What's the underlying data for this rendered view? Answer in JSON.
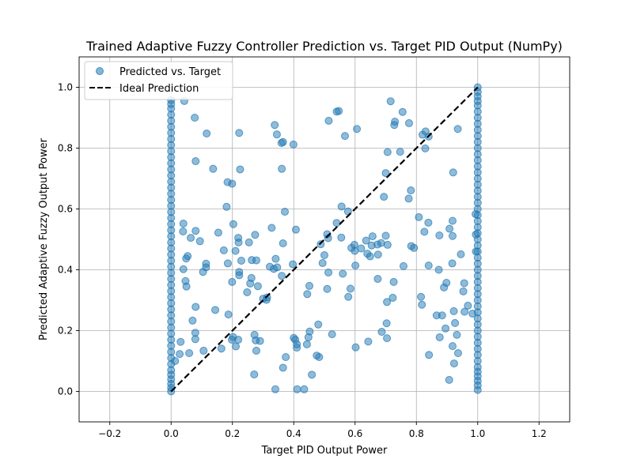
{
  "chart_data": {
    "type": "scatter",
    "title": "Trained Adaptive Fuzzy Controller Prediction vs. Target PID Output (NumPy)",
    "xlabel": "Target PID Output Power",
    "ylabel": "Predicted Adaptive Fuzzy Output Power",
    "xlim": [
      -0.3,
      1.3
    ],
    "ylim": [
      -0.1,
      1.1
    ],
    "xticks": [
      -0.2,
      0.0,
      0.2,
      0.4,
      0.6,
      0.8,
      1.0,
      1.2
    ],
    "xtick_labels": [
      "−0.2",
      "0.0",
      "0.2",
      "0.4",
      "0.6",
      "0.8",
      "1.0",
      "1.2"
    ],
    "yticks": [
      0.0,
      0.2,
      0.4,
      0.6,
      0.8,
      1.0
    ],
    "ytick_labels": [
      "0.0",
      "0.2",
      "0.4",
      "0.6",
      "0.8",
      "1.0"
    ],
    "grid": true,
    "legend_position": "top-left",
    "colors": {
      "scatter": "#1f77b4",
      "ideal": "#000000",
      "grid": "#b0b0b0"
    },
    "series": [
      {
        "name": "Predicted vs. Target",
        "kind": "scatter",
        "points": [
          [
            0.043,
            0.955
          ],
          [
            0.077,
            0.9
          ],
          [
            0.116,
            0.848
          ],
          [
            0.222,
            0.85
          ],
          [
            0.08,
            0.757
          ],
          [
            0.137,
            0.732
          ],
          [
            0.225,
            0.73
          ],
          [
            0.184,
            0.688
          ],
          [
            0.199,
            0.683
          ],
          [
            0.181,
            0.607
          ],
          [
            0.203,
            0.55
          ],
          [
            0.04,
            0.552
          ],
          [
            0.039,
            0.526
          ],
          [
            0.08,
            0.528
          ],
          [
            0.154,
            0.522
          ],
          [
            0.064,
            0.505
          ],
          [
            0.094,
            0.494
          ],
          [
            0.219,
            0.505
          ],
          [
            0.22,
            0.49
          ],
          [
            0.172,
            0.464
          ],
          [
            0.21,
            0.462
          ],
          [
            0.254,
            0.49
          ],
          [
            0.274,
            0.515
          ],
          [
            0.054,
            0.445
          ],
          [
            0.049,
            0.437
          ],
          [
            0.114,
            0.42
          ],
          [
            0.114,
            0.408
          ],
          [
            0.185,
            0.421
          ],
          [
            0.229,
            0.43
          ],
          [
            0.263,
            0.432
          ],
          [
            0.278,
            0.431
          ],
          [
            0.04,
            0.402
          ],
          [
            0.104,
            0.393
          ],
          [
            0.222,
            0.393
          ],
          [
            0.222,
            0.382
          ],
          [
            0.262,
            0.373
          ],
          [
            0.047,
            0.363
          ],
          [
            0.05,
            0.345
          ],
          [
            0.199,
            0.36
          ],
          [
            0.258,
            0.355
          ],
          [
            0.283,
            0.346
          ],
          [
            0.248,
            0.326
          ],
          [
            0.3,
            0.305
          ],
          [
            0.313,
            0.309
          ],
          [
            0.08,
            0.278
          ],
          [
            0.144,
            0.268
          ],
          [
            0.187,
            0.253
          ],
          [
            0.07,
            0.233
          ],
          [
            0.079,
            0.193
          ],
          [
            0.272,
            0.186
          ],
          [
            0.202,
            0.179
          ],
          [
            0.198,
            0.17
          ],
          [
            0.219,
            0.17
          ],
          [
            0.276,
            0.168
          ],
          [
            0.29,
            0.166
          ],
          [
            0.031,
            0.163
          ],
          [
            0.079,
            0.172
          ],
          [
            0.164,
            0.141
          ],
          [
            0.211,
            0.148
          ],
          [
            0.106,
            0.134
          ],
          [
            0.278,
            0.134
          ],
          [
            0.059,
            0.126
          ],
          [
            0.028,
            0.123
          ],
          [
            0.013,
            0.1
          ],
          [
            0.271,
            0.056
          ],
          [
            0.338,
            0.876
          ],
          [
            0.345,
            0.845
          ],
          [
            0.36,
            0.817
          ],
          [
            0.365,
            0.82
          ],
          [
            0.399,
            0.812
          ],
          [
            0.361,
            0.732
          ],
          [
            0.371,
            0.591
          ],
          [
            0.328,
            0.538
          ],
          [
            0.407,
            0.532
          ],
          [
            0.365,
            0.487
          ],
          [
            0.341,
            0.436
          ],
          [
            0.322,
            0.41
          ],
          [
            0.335,
            0.403
          ],
          [
            0.346,
            0.408
          ],
          [
            0.397,
            0.418
          ],
          [
            0.361,
            0.38
          ],
          [
            0.311,
            0.301
          ],
          [
            0.4,
            0.176
          ],
          [
            0.405,
            0.17
          ],
          [
            0.41,
            0.144
          ],
          [
            0.41,
            0.155
          ],
          [
            0.374,
            0.113
          ],
          [
            0.365,
            0.078
          ],
          [
            0.34,
            0.007
          ],
          [
            0.411,
            0.007
          ],
          [
            0.434,
            0.007
          ],
          [
            0.443,
            0.155
          ],
          [
            0.448,
            0.178
          ],
          [
            0.452,
            0.197
          ],
          [
            0.48,
            0.22
          ],
          [
            0.475,
            0.118
          ],
          [
            0.483,
            0.113
          ],
          [
            0.459,
            0.055
          ],
          [
            0.444,
            0.32
          ],
          [
            0.451,
            0.347
          ],
          [
            0.494,
            0.422
          ],
          [
            0.5,
            0.448
          ],
          [
            0.488,
            0.484
          ],
          [
            0.509,
            0.517
          ],
          [
            0.512,
            0.504
          ],
          [
            0.514,
            0.89
          ],
          [
            0.54,
            0.92
          ],
          [
            0.547,
            0.922
          ],
          [
            0.567,
            0.84
          ],
          [
            0.556,
            0.608
          ],
          [
            0.577,
            0.592
          ],
          [
            0.54,
            0.554
          ],
          [
            0.555,
            0.506
          ],
          [
            0.509,
            0.337
          ],
          [
            0.513,
            0.391
          ],
          [
            0.56,
            0.387
          ],
          [
            0.578,
            0.311
          ],
          [
            0.585,
            0.338
          ],
          [
            0.525,
            0.188
          ],
          [
            0.602,
            0.145
          ],
          [
            0.606,
            0.863
          ],
          [
            0.588,
            0.472
          ],
          [
            0.598,
            0.482
          ],
          [
            0.599,
            0.462
          ],
          [
            0.62,
            0.47
          ],
          [
            0.636,
            0.496
          ],
          [
            0.64,
            0.453
          ],
          [
            0.649,
            0.444
          ],
          [
            0.654,
            0.48
          ],
          [
            0.657,
            0.51
          ],
          [
            0.673,
            0.483
          ],
          [
            0.675,
            0.45
          ],
          [
            0.685,
            0.488
          ],
          [
            0.7,
            0.512
          ],
          [
            0.706,
            0.482
          ],
          [
            0.601,
            0.414
          ],
          [
            0.674,
            0.37
          ],
          [
            0.694,
            0.64
          ],
          [
            0.7,
            0.718
          ],
          [
            0.706,
            0.787
          ],
          [
            0.716,
            0.954
          ],
          [
            0.728,
            0.876
          ],
          [
            0.73,
            0.887
          ],
          [
            0.755,
            0.919
          ],
          [
            0.776,
            0.882
          ],
          [
            0.726,
            0.36
          ],
          [
            0.704,
            0.294
          ],
          [
            0.723,
            0.308
          ],
          [
            0.643,
            0.164
          ],
          [
            0.687,
            0.196
          ],
          [
            0.704,
            0.175
          ],
          [
            0.703,
            0.224
          ],
          [
            0.747,
            0.788
          ],
          [
            0.775,
            0.634
          ],
          [
            0.782,
            0.661
          ],
          [
            0.783,
            0.478
          ],
          [
            0.792,
            0.472
          ],
          [
            0.758,
            0.412
          ],
          [
            0.83,
            0.855
          ],
          [
            0.82,
            0.844
          ],
          [
            0.84,
            0.838
          ],
          [
            0.829,
            0.799
          ],
          [
            0.808,
            0.573
          ],
          [
            0.839,
            0.555
          ],
          [
            0.826,
            0.525
          ],
          [
            0.875,
            0.513
          ],
          [
            0.908,
            0.535
          ],
          [
            0.918,
            0.511
          ],
          [
            0.918,
            0.561
          ],
          [
            0.935,
            0.863
          ],
          [
            0.92,
            0.72
          ],
          [
            0.945,
            0.451
          ],
          [
            0.84,
            0.414
          ],
          [
            0.873,
            0.4
          ],
          [
            0.898,
            0.357
          ],
          [
            0.956,
            0.356
          ],
          [
            0.953,
            0.329
          ],
          [
            0.917,
            0.421
          ],
          [
            0.89,
            0.342
          ],
          [
            0.815,
            0.311
          ],
          [
            0.818,
            0.285
          ],
          [
            0.866,
            0.25
          ],
          [
            0.884,
            0.25
          ],
          [
            0.922,
            0.264
          ],
          [
            0.957,
            0.262
          ],
          [
            0.968,
            0.282
          ],
          [
            0.983,
            0.256
          ],
          [
            0.926,
            0.225
          ],
          [
            0.895,
            0.207
          ],
          [
            0.932,
            0.186
          ],
          [
            0.876,
            0.178
          ],
          [
            0.918,
            0.149
          ],
          [
            0.936,
            0.126
          ],
          [
            0.841,
            0.12
          ],
          [
            0.923,
            0.092
          ],
          [
            0.907,
            0.038
          ],
          [
            0.993,
            0.583
          ],
          [
            0.994,
            0.516
          ],
          [
            0.994,
            0.46
          ],
          [
            0.0,
            0.0
          ],
          [
            0.0,
            0.012
          ],
          [
            0.0,
            0.025
          ],
          [
            0.0,
            0.04
          ],
          [
            0.0,
            0.055
          ],
          [
            0.0,
            0.07
          ],
          [
            0.0,
            0.09
          ],
          [
            0.0,
            0.11
          ],
          [
            0.0,
            0.13
          ],
          [
            0.0,
            0.15
          ],
          [
            0.0,
            0.17
          ],
          [
            0.0,
            0.19
          ],
          [
            0.0,
            0.21
          ],
          [
            0.0,
            0.23
          ],
          [
            0.0,
            0.25
          ],
          [
            0.0,
            0.27
          ],
          [
            0.0,
            0.29
          ],
          [
            0.0,
            0.31
          ],
          [
            0.0,
            0.33
          ],
          [
            0.0,
            0.35
          ],
          [
            0.0,
            0.37
          ],
          [
            0.0,
            0.39
          ],
          [
            0.0,
            0.41
          ],
          [
            0.0,
            0.43
          ],
          [
            0.0,
            0.45
          ],
          [
            0.0,
            0.47
          ],
          [
            0.0,
            0.49
          ],
          [
            0.0,
            0.51
          ],
          [
            0.0,
            0.53
          ],
          [
            0.0,
            0.55
          ],
          [
            0.0,
            0.57
          ],
          [
            0.0,
            0.59
          ],
          [
            0.0,
            0.61
          ],
          [
            0.0,
            0.63
          ],
          [
            0.0,
            0.65
          ],
          [
            0.0,
            0.67
          ],
          [
            0.0,
            0.69
          ],
          [
            0.0,
            0.71
          ],
          [
            0.0,
            0.73
          ],
          [
            0.0,
            0.75
          ],
          [
            0.0,
            0.77
          ],
          [
            0.0,
            0.79
          ],
          [
            0.0,
            0.81
          ],
          [
            0.0,
            0.83
          ],
          [
            0.0,
            0.85
          ],
          [
            0.0,
            0.87
          ],
          [
            0.0,
            0.89
          ],
          [
            0.0,
            0.91
          ],
          [
            0.0,
            0.93
          ],
          [
            0.0,
            0.945
          ],
          [
            0.0,
            0.958
          ],
          [
            1.0,
            0.005
          ],
          [
            1.0,
            0.02
          ],
          [
            1.0,
            0.035
          ],
          [
            1.0,
            0.05
          ],
          [
            1.0,
            0.065
          ],
          [
            1.0,
            0.08
          ],
          [
            1.0,
            0.1
          ],
          [
            1.0,
            0.12
          ],
          [
            1.0,
            0.14
          ],
          [
            1.0,
            0.16
          ],
          [
            1.0,
            0.18
          ],
          [
            1.0,
            0.2
          ],
          [
            1.0,
            0.22
          ],
          [
            1.0,
            0.24
          ],
          [
            1.0,
            0.26
          ],
          [
            1.0,
            0.28
          ],
          [
            1.0,
            0.3
          ],
          [
            1.0,
            0.32
          ],
          [
            1.0,
            0.34
          ],
          [
            1.0,
            0.36
          ],
          [
            1.0,
            0.38
          ],
          [
            1.0,
            0.4
          ],
          [
            1.0,
            0.42
          ],
          [
            1.0,
            0.44
          ],
          [
            1.0,
            0.46
          ],
          [
            1.0,
            0.48
          ],
          [
            1.0,
            0.5
          ],
          [
            1.0,
            0.52
          ],
          [
            1.0,
            0.54
          ],
          [
            1.0,
            0.56
          ],
          [
            1.0,
            0.58
          ],
          [
            1.0,
            0.6
          ],
          [
            1.0,
            0.62
          ],
          [
            1.0,
            0.64
          ],
          [
            1.0,
            0.66
          ],
          [
            1.0,
            0.68
          ],
          [
            1.0,
            0.7
          ],
          [
            1.0,
            0.72
          ],
          [
            1.0,
            0.74
          ],
          [
            1.0,
            0.76
          ],
          [
            1.0,
            0.78
          ],
          [
            1.0,
            0.8
          ],
          [
            1.0,
            0.82
          ],
          [
            1.0,
            0.84
          ],
          [
            1.0,
            0.86
          ],
          [
            1.0,
            0.88
          ],
          [
            1.0,
            0.9
          ],
          [
            1.0,
            0.92
          ],
          [
            1.0,
            0.94
          ],
          [
            1.0,
            0.955
          ],
          [
            1.0,
            0.97
          ],
          [
            1.0,
            0.985
          ],
          [
            1.0,
            1.0
          ]
        ]
      },
      {
        "name": "Ideal Prediction",
        "kind": "line",
        "style": "dashed",
        "points": [
          [
            0.0,
            0.0
          ],
          [
            1.0,
            1.0
          ]
        ]
      }
    ]
  }
}
